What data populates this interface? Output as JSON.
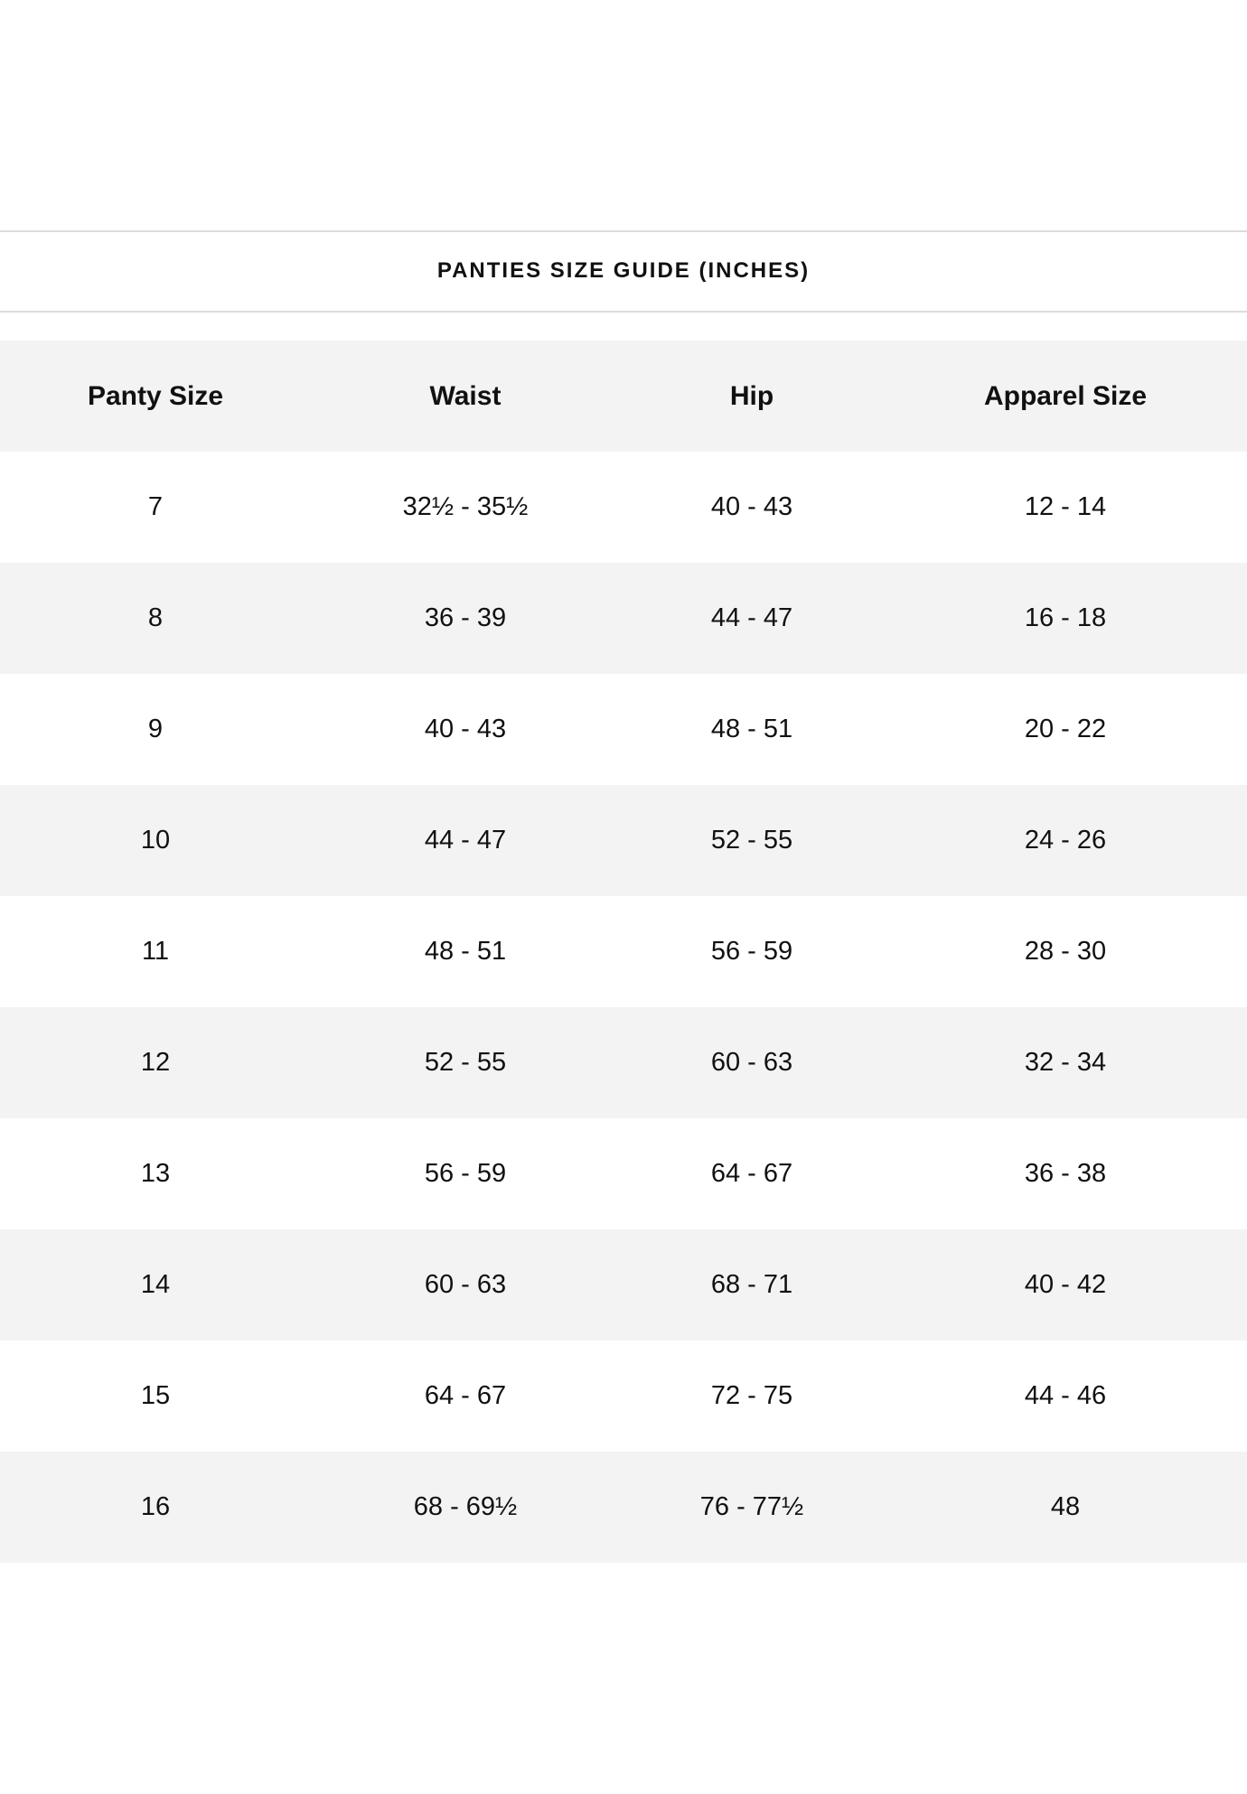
{
  "title": "PANTIES SIZE GUIDE (INCHES)",
  "table": {
    "headers": [
      "Panty Size",
      "Waist",
      "Hip",
      "Apparel Size"
    ],
    "rows": [
      [
        "7",
        "32½ - 35½",
        "40 - 43",
        "12 - 14"
      ],
      [
        "8",
        "36 - 39",
        "44 - 47",
        "16 - 18"
      ],
      [
        "9",
        "40 - 43",
        "48 - 51",
        "20 - 22"
      ],
      [
        "10",
        "44 - 47",
        "52 - 55",
        "24 - 26"
      ],
      [
        "11",
        "48 - 51",
        "56 - 59",
        "28 - 30"
      ],
      [
        "12",
        "52 - 55",
        "60 - 63",
        "32 - 34"
      ],
      [
        "13",
        "56 - 59",
        "64 - 67",
        "36 - 38"
      ],
      [
        "14",
        "60 - 63",
        "68 - 71",
        "40 - 42"
      ],
      [
        "15",
        "64 - 67",
        "72 - 75",
        "44 - 46"
      ],
      [
        "16",
        "68 - 69½",
        "76 - 77½",
        "48"
      ]
    ]
  },
  "colors": {
    "stripe": "#f3f3f3",
    "rule": "#dcdcdc",
    "text": "#111111"
  }
}
